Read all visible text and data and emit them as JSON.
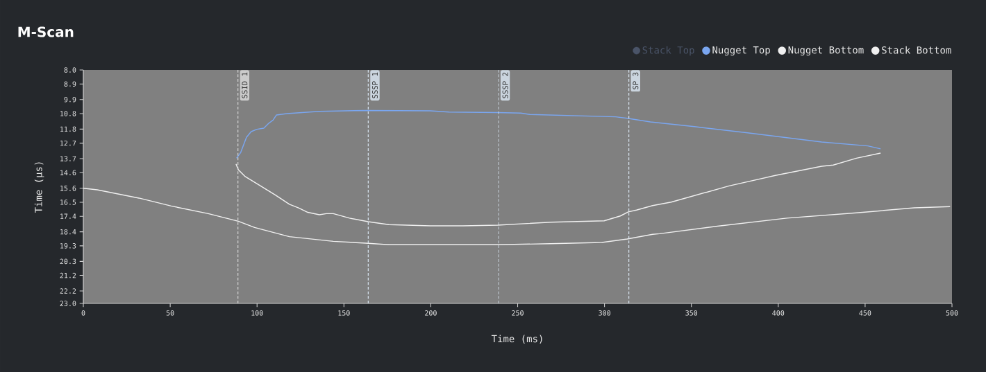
{
  "chart_data": {
    "type": "line",
    "title": "M-Scan",
    "xlabel": "Time (ms)",
    "ylabel": "Time (µs)",
    "xlim": [
      0,
      500
    ],
    "xticks": [
      0,
      50,
      100,
      150,
      200,
      250,
      300,
      350,
      400,
      450,
      500
    ],
    "ylim": [
      23,
      8
    ],
    "yticks": [
      {
        "value": 8,
        "label": "8.0"
      },
      8.9,
      9.9,
      10.8,
      11.8,
      12.7,
      13.7,
      14.6,
      15.6,
      16.5,
      17.4,
      18.4,
      19.3,
      20.3,
      21.2,
      22.2,
      {
        "value": 23,
        "label": "23.0"
      }
    ],
    "legend": "top right",
    "series": [
      {
        "name": "Stack Top",
        "color": "#4a5468"
      },
      {
        "name": "Nugget Top",
        "color": "#7aa6f0",
        "x": [
          88.2,
          90.6,
          93.9,
          96.6,
          99.9,
          103.9,
          106.6,
          109.2,
          111.2,
          117.2,
          135.9,
          162.6,
          199.8,
          210.5,
          238.5,
          251.8,
          257.1,
          306.4,
          313.1,
          326.4,
          351.7,
          382.4,
          425,
          451.6,
          458.9
        ],
        "values": [
          13.67,
          13.3,
          12.33,
          11.96,
          11.81,
          11.74,
          11.44,
          11.22,
          10.89,
          10.8,
          10.66,
          10.6,
          10.63,
          10.7,
          10.74,
          10.77,
          10.86,
          11.01,
          11.1,
          11.34,
          11.64,
          12.04,
          12.63,
          12.88,
          13.07
        ]
      },
      {
        "name": "Nugget Bottom",
        "color": "#f0f0f0",
        "x": [
          87.9,
          89.2,
          93.2,
          99.9,
          110.6,
          118.6,
          123.9,
          129.2,
          135.9,
          139.9,
          143.9,
          153.2,
          163.9,
          175.9,
          199.8,
          218.5,
          238.5,
          269.1,
          299.8,
          309.1,
          313.7,
          318.4,
          327.7,
          338.4,
          371.7,
          398.3,
          425,
          431.7,
          445,
          458.9
        ],
        "values": [
          14.04,
          14.41,
          14.85,
          15.3,
          16.04,
          16.63,
          16.86,
          17.15,
          17.3,
          17.23,
          17.23,
          17.52,
          17.75,
          17.94,
          18.01,
          18.01,
          17.97,
          17.78,
          17.69,
          17.38,
          17.12,
          17.0,
          16.71,
          16.49,
          15.45,
          14.78,
          14.19,
          14.11,
          13.67,
          13.34
        ]
      },
      {
        "name": "Stack Bottom",
        "color": "#f0f0f0",
        "x": [
          0,
          8,
          32,
          50.6,
          71.9,
          89.2,
          98.6,
          118.6,
          143.9,
          162.6,
          175.9,
          238.5,
          269.1,
          298.4,
          313.1,
          327.7,
          331.7,
          365,
          405,
          445,
          478.3,
          498.9
        ],
        "values": [
          15.6,
          15.7,
          16.23,
          16.74,
          17.23,
          17.72,
          18.12,
          18.71,
          19.01,
          19.13,
          19.23,
          19.23,
          19.16,
          19.08,
          18.86,
          18.56,
          18.52,
          18.04,
          17.52,
          17.18,
          16.86,
          16.78
        ]
      }
    ],
    "ref_lines": [
      {
        "axis": "x",
        "value": 89,
        "label": "SSID 1",
        "color": "#d8d8d8",
        "line_style": "dashed"
      },
      {
        "axis": "x",
        "value": 164,
        "label": "SSSP 1",
        "color": "#d8e4f0",
        "line_style": "dashed"
      },
      {
        "axis": "x",
        "value": 239,
        "label": "SSSP 2",
        "color": "#d8e4f0",
        "line_style": "dashed"
      },
      {
        "axis": "x",
        "value": 314,
        "label": "SP 3",
        "color": "#d8e4f0",
        "line_style": "dashed"
      }
    ]
  }
}
